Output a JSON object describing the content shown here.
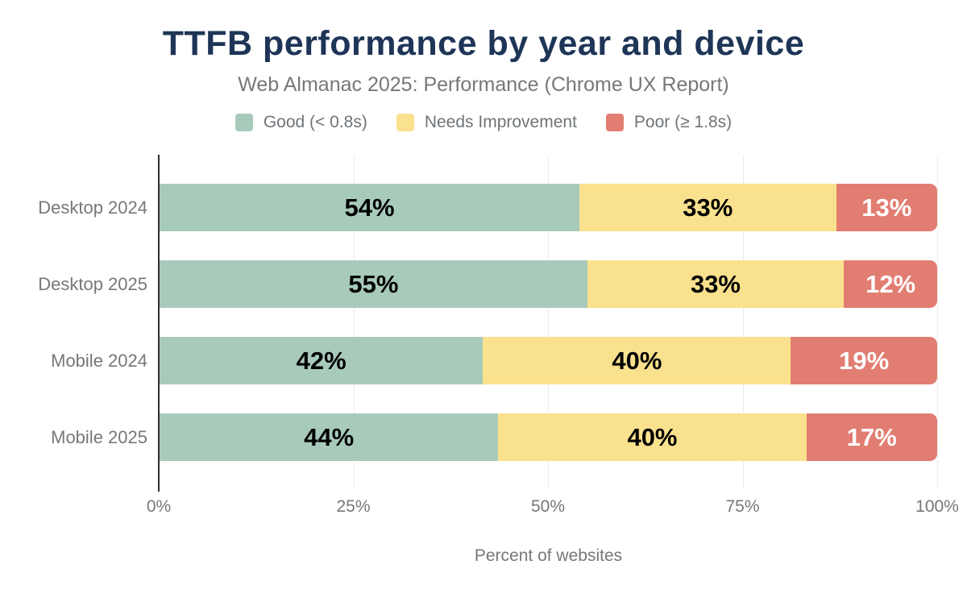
{
  "header": {
    "title": "TTFB performance by year and device",
    "subtitle": "Web Almanac 2025: Performance (Chrome UX Report)"
  },
  "colors": {
    "title_text": "#1e3557",
    "muted_text": "#75787b",
    "axis_line": "#2f2f2f",
    "gridline": "#ececec",
    "good": "#a8cabb",
    "needs_improvement": "#fae18e",
    "poor": "#e27d72"
  },
  "chart_data": {
    "type": "bar",
    "orientation": "horizontal",
    "stacked": true,
    "title": "TTFB performance by year and device",
    "subtitle": "Web Almanac 2025: Performance (Chrome UX Report)",
    "xlabel": "Percent of websites",
    "xlim": [
      0,
      100
    ],
    "x_ticks": [
      {
        "label": "0%",
        "pos": 0
      },
      {
        "label": "25%",
        "pos": 25
      },
      {
        "label": "50%",
        "pos": 50
      },
      {
        "label": "75%",
        "pos": 75
      },
      {
        "label": "100%",
        "pos": 100
      }
    ],
    "grid": true,
    "legend_position": "top",
    "categories": [
      "Desktop 2024",
      "Desktop 2025",
      "Mobile 2024",
      "Mobile 2025"
    ],
    "series": [
      {
        "key": "good",
        "name": "Good (< 0.8s)",
        "color": "#a8cabb",
        "label_color": "#000000",
        "values": [
          54,
          55,
          42,
          44
        ]
      },
      {
        "key": "needs-improvement",
        "name": "Needs Improvement",
        "color": "#fae18e",
        "label_color": "#000000",
        "values": [
          33,
          33,
          40,
          40
        ]
      },
      {
        "key": "poor",
        "name": "Poor (≥ 1.8s)",
        "color": "#e27d72",
        "label_color": "#ffffff",
        "values": [
          13,
          12,
          19,
          17
        ]
      }
    ],
    "value_label_format": "{value}%"
  }
}
